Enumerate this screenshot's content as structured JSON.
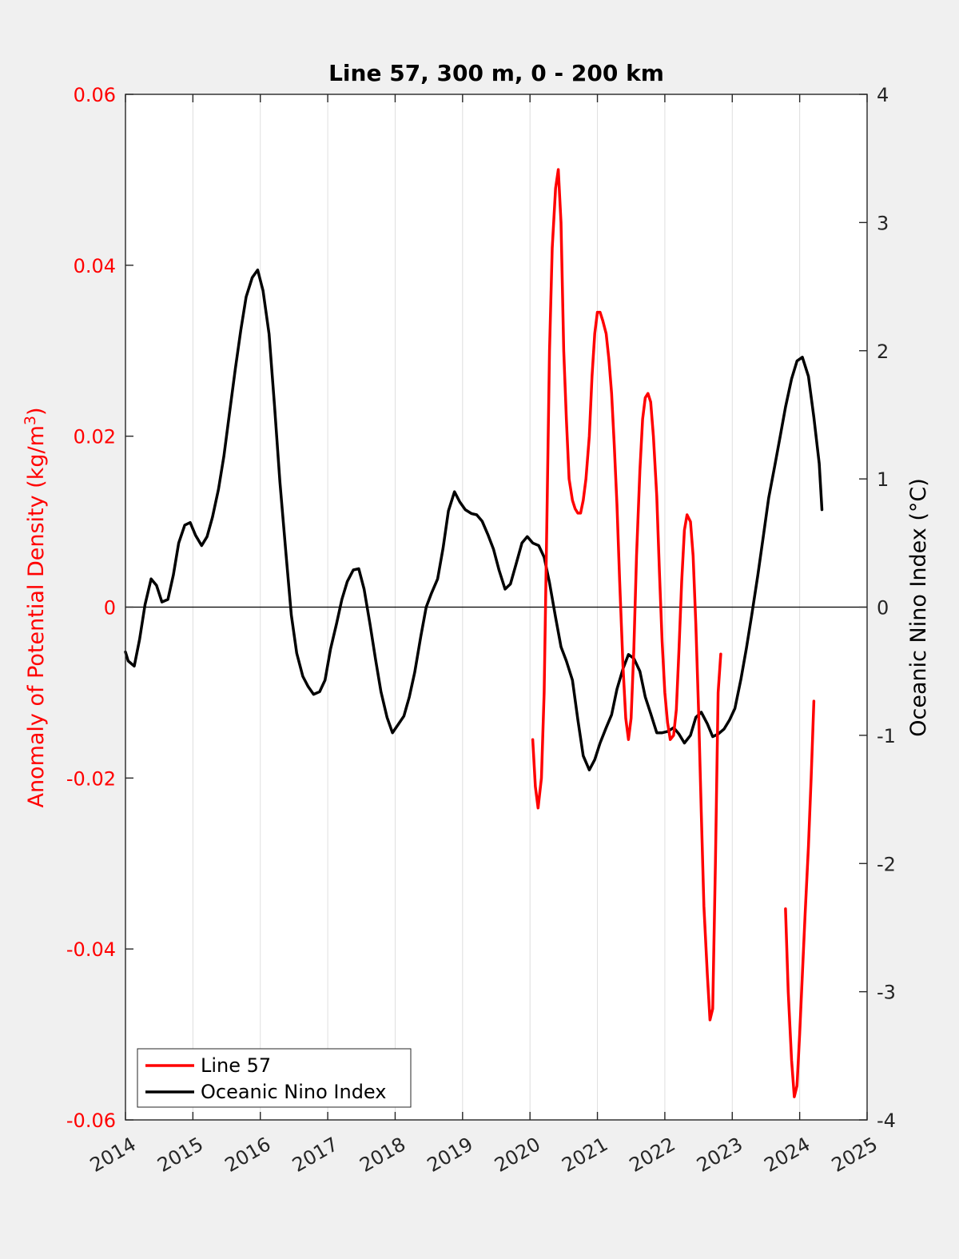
{
  "chart_data": {
    "type": "line",
    "title": "Line 57, 300 m, 0 - 200 km",
    "xlim": [
      2014,
      2025
    ],
    "x_ticks": [
      "2014",
      "2015",
      "2016",
      "2017",
      "2018",
      "2019",
      "2020",
      "2021",
      "2022",
      "2023",
      "2024",
      "2025"
    ],
    "y_left": {
      "label_prefix": "Anomaly of Potential Density (kg/m",
      "label_sup": "3",
      "label_suffix": ")",
      "lim": [
        -0.06,
        0.06
      ],
      "ticks": [
        "-0.06",
        "-0.04",
        "-0.02",
        "0",
        "0.02",
        "0.04",
        "0.06"
      ],
      "color": "#ff0000"
    },
    "y_right": {
      "label": "Oceanic Nino Index (°C)",
      "lim": [
        -4,
        4
      ],
      "ticks": [
        "-4",
        "-3",
        "-2",
        "-1",
        "0",
        "1",
        "2",
        "3",
        "4"
      ],
      "color": "#000000"
    },
    "grid": "x",
    "zero_line": true,
    "legend_position": "bottom-left",
    "series": [
      {
        "name": "Line 57",
        "axis": "left",
        "color": "#ff0000",
        "segments": [
          [
            [
              2020.04,
              -0.0155
            ],
            [
              2020.08,
              -0.021
            ],
            [
              2020.12,
              -0.0235
            ],
            [
              2020.17,
              -0.02
            ],
            [
              2020.21,
              -0.01
            ],
            [
              2020.25,
              0.01
            ],
            [
              2020.29,
              0.03
            ],
            [
              2020.33,
              0.042
            ],
            [
              2020.38,
              0.049
            ],
            [
              2020.42,
              0.0512
            ],
            [
              2020.46,
              0.045
            ],
            [
              2020.5,
              0.03
            ],
            [
              2020.54,
              0.022
            ],
            [
              2020.58,
              0.015
            ],
            [
              2020.63,
              0.0125
            ],
            [
              2020.67,
              0.0115
            ],
            [
              2020.71,
              0.011
            ],
            [
              2020.75,
              0.011
            ],
            [
              2020.79,
              0.0125
            ],
            [
              2020.83,
              0.015
            ],
            [
              2020.88,
              0.02
            ],
            [
              2020.92,
              0.027
            ],
            [
              2020.96,
              0.032
            ],
            [
              2021.0,
              0.0345
            ],
            [
              2021.04,
              0.0345
            ],
            [
              2021.08,
              0.0335
            ],
            [
              2021.13,
              0.032
            ],
            [
              2021.17,
              0.029
            ],
            [
              2021.21,
              0.025
            ],
            [
              2021.25,
              0.019
            ],
            [
              2021.29,
              0.012
            ],
            [
              2021.33,
              0.003
            ],
            [
              2021.38,
              -0.007
            ],
            [
              2021.42,
              -0.013
            ],
            [
              2021.46,
              -0.0155
            ],
            [
              2021.5,
              -0.013
            ],
            [
              2021.54,
              -0.005
            ],
            [
              2021.58,
              0.006
            ],
            [
              2021.63,
              0.016
            ],
            [
              2021.67,
              0.022
            ],
            [
              2021.71,
              0.0245
            ],
            [
              2021.75,
              0.025
            ],
            [
              2021.79,
              0.024
            ],
            [
              2021.83,
              0.02
            ],
            [
              2021.88,
              0.013
            ],
            [
              2021.92,
              0.004
            ],
            [
              2021.96,
              -0.004
            ],
            [
              2022.0,
              -0.01
            ],
            [
              2022.04,
              -0.0135
            ],
            [
              2022.08,
              -0.0155
            ],
            [
              2022.13,
              -0.015
            ],
            [
              2022.17,
              -0.012
            ],
            [
              2022.21,
              -0.005
            ],
            [
              2022.25,
              0.003
            ],
            [
              2022.29,
              0.009
            ],
            [
              2022.33,
              0.0108
            ],
            [
              2022.38,
              0.01
            ],
            [
              2022.42,
              0.006
            ],
            [
              2022.46,
              -0.002
            ],
            [
              2022.5,
              -0.012
            ],
            [
              2022.54,
              -0.024
            ],
            [
              2022.58,
              -0.035
            ],
            [
              2022.63,
              -0.043
            ],
            [
              2022.67,
              -0.0483
            ],
            [
              2022.71,
              -0.047
            ],
            [
              2022.75,
              -0.03
            ],
            [
              2022.79,
              -0.01
            ],
            [
              2022.83,
              -0.0055
            ]
          ],
          [
            [
              2023.79,
              -0.0353
            ],
            [
              2023.83,
              -0.045
            ],
            [
              2023.88,
              -0.053
            ],
            [
              2023.92,
              -0.0573
            ],
            [
              2023.96,
              -0.056
            ],
            [
              2024.0,
              -0.05
            ],
            [
              2024.04,
              -0.043
            ],
            [
              2024.08,
              -0.036
            ],
            [
              2024.13,
              -0.028
            ],
            [
              2024.17,
              -0.02
            ],
            [
              2024.21,
              -0.011
            ]
          ]
        ]
      },
      {
        "name": "Oceanic Nino Index",
        "axis": "right",
        "color": "#000000",
        "segments": [
          [
            [
              2014.0,
              -0.35
            ],
            [
              2014.04,
              -0.42
            ],
            [
              2014.13,
              -0.46
            ],
            [
              2014.21,
              -0.25
            ],
            [
              2014.29,
              0.02
            ],
            [
              2014.38,
              0.22
            ],
            [
              2014.46,
              0.17
            ],
            [
              2014.54,
              0.04
            ],
            [
              2014.63,
              0.06
            ],
            [
              2014.71,
              0.25
            ],
            [
              2014.79,
              0.5
            ],
            [
              2014.88,
              0.64
            ],
            [
              2014.96,
              0.66
            ],
            [
              2015.04,
              0.56
            ],
            [
              2015.13,
              0.48
            ],
            [
              2015.21,
              0.55
            ],
            [
              2015.29,
              0.7
            ],
            [
              2015.38,
              0.92
            ],
            [
              2015.46,
              1.18
            ],
            [
              2015.54,
              1.5
            ],
            [
              2015.63,
              1.86
            ],
            [
              2015.71,
              2.16
            ],
            [
              2015.79,
              2.42
            ],
            [
              2015.88,
              2.57
            ],
            [
              2015.96,
              2.63
            ],
            [
              2016.04,
              2.47
            ],
            [
              2016.13,
              2.13
            ],
            [
              2016.21,
              1.58
            ],
            [
              2016.29,
              0.98
            ],
            [
              2016.38,
              0.42
            ],
            [
              2016.46,
              -0.06
            ],
            [
              2016.54,
              -0.36
            ],
            [
              2016.63,
              -0.54
            ],
            [
              2016.71,
              -0.62
            ],
            [
              2016.79,
              -0.68
            ],
            [
              2016.88,
              -0.66
            ],
            [
              2016.96,
              -0.57
            ],
            [
              2017.04,
              -0.33
            ],
            [
              2017.13,
              -0.13
            ],
            [
              2017.21,
              0.06
            ],
            [
              2017.29,
              0.2
            ],
            [
              2017.38,
              0.29
            ],
            [
              2017.46,
              0.3
            ],
            [
              2017.54,
              0.14
            ],
            [
              2017.63,
              -0.14
            ],
            [
              2017.71,
              -0.41
            ],
            [
              2017.79,
              -0.66
            ],
            [
              2017.88,
              -0.86
            ],
            [
              2017.96,
              -0.98
            ],
            [
              2018.04,
              -0.92
            ],
            [
              2018.13,
              -0.85
            ],
            [
              2018.21,
              -0.7
            ],
            [
              2018.29,
              -0.51
            ],
            [
              2018.38,
              -0.23
            ],
            [
              2018.46,
              0.0
            ],
            [
              2018.54,
              0.11
            ],
            [
              2018.63,
              0.22
            ],
            [
              2018.71,
              0.46
            ],
            [
              2018.79,
              0.75
            ],
            [
              2018.88,
              0.9
            ],
            [
              2018.96,
              0.82
            ],
            [
              2019.04,
              0.76
            ],
            [
              2019.13,
              0.73
            ],
            [
              2019.21,
              0.72
            ],
            [
              2019.29,
              0.67
            ],
            [
              2019.38,
              0.56
            ],
            [
              2019.46,
              0.45
            ],
            [
              2019.54,
              0.29
            ],
            [
              2019.63,
              0.14
            ],
            [
              2019.71,
              0.18
            ],
            [
              2019.79,
              0.33
            ],
            [
              2019.88,
              0.5
            ],
            [
              2019.96,
              0.55
            ],
            [
              2020.04,
              0.5
            ],
            [
              2020.13,
              0.48
            ],
            [
              2020.21,
              0.39
            ],
            [
              2020.29,
              0.19
            ],
            [
              2020.38,
              -0.08
            ],
            [
              2020.46,
              -0.31
            ],
            [
              2020.54,
              -0.42
            ],
            [
              2020.63,
              -0.57
            ],
            [
              2020.71,
              -0.88
            ],
            [
              2020.79,
              -1.16
            ],
            [
              2020.88,
              -1.27
            ],
            [
              2020.96,
              -1.19
            ],
            [
              2021.04,
              -1.06
            ],
            [
              2021.13,
              -0.94
            ],
            [
              2021.21,
              -0.84
            ],
            [
              2021.29,
              -0.64
            ],
            [
              2021.38,
              -0.48
            ],
            [
              2021.46,
              -0.37
            ],
            [
              2021.54,
              -0.4
            ],
            [
              2021.63,
              -0.5
            ],
            [
              2021.71,
              -0.7
            ],
            [
              2021.79,
              -0.83
            ],
            [
              2021.88,
              -0.98
            ],
            [
              2021.96,
              -0.98
            ],
            [
              2022.04,
              -0.97
            ],
            [
              2022.13,
              -0.94
            ],
            [
              2022.21,
              -0.99
            ],
            [
              2022.29,
              -1.06
            ],
            [
              2022.38,
              -1.0
            ],
            [
              2022.46,
              -0.86
            ],
            [
              2022.54,
              -0.82
            ],
            [
              2022.63,
              -0.91
            ],
            [
              2022.71,
              -1.01
            ],
            [
              2022.79,
              -0.99
            ],
            [
              2022.88,
              -0.95
            ],
            [
              2022.96,
              -0.88
            ],
            [
              2023.04,
              -0.79
            ],
            [
              2023.13,
              -0.56
            ],
            [
              2023.21,
              -0.32
            ],
            [
              2023.29,
              -0.06
            ],
            [
              2023.38,
              0.25
            ],
            [
              2023.46,
              0.55
            ],
            [
              2023.54,
              0.85
            ],
            [
              2023.63,
              1.1
            ],
            [
              2023.71,
              1.33
            ],
            [
              2023.79,
              1.56
            ],
            [
              2023.88,
              1.78
            ],
            [
              2023.96,
              1.92
            ],
            [
              2024.04,
              1.95
            ],
            [
              2024.13,
              1.8
            ],
            [
              2024.21,
              1.48
            ],
            [
              2024.29,
              1.12
            ],
            [
              2024.33,
              0.76
            ]
          ]
        ]
      }
    ]
  }
}
